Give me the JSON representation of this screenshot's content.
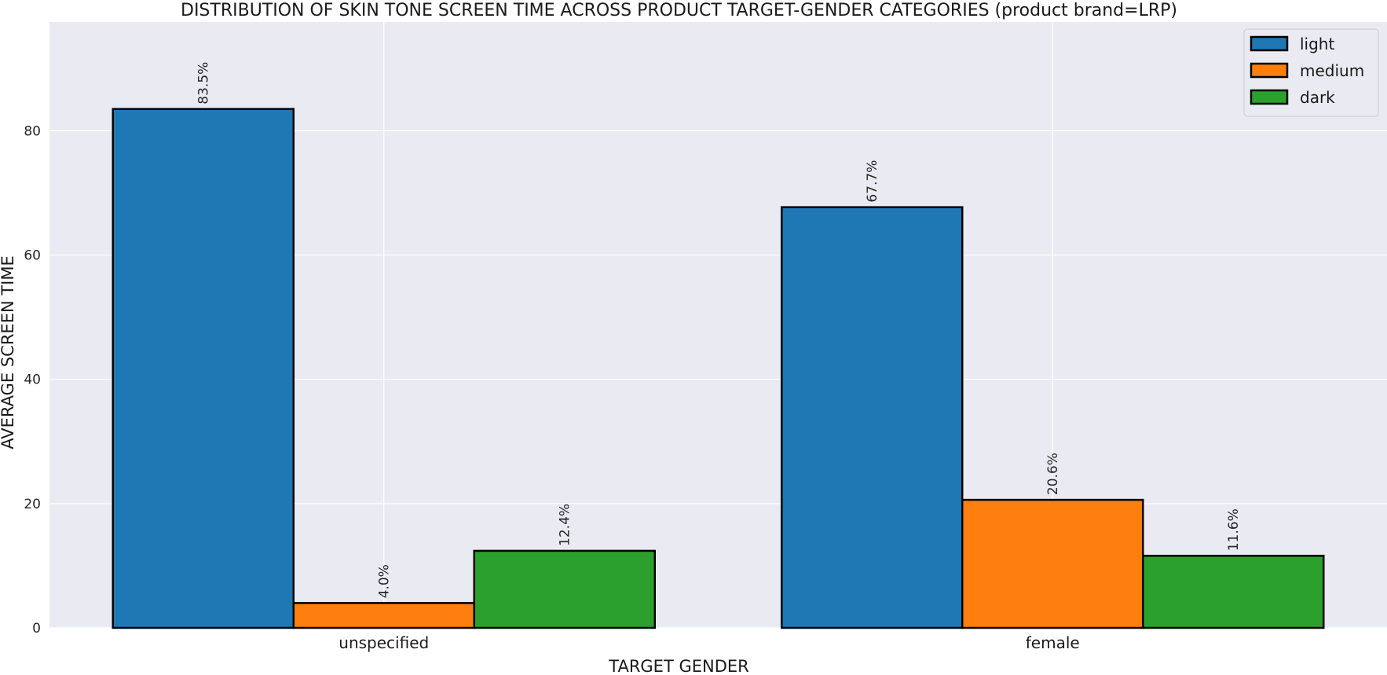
{
  "chart_data": {
    "type": "bar",
    "title": "DISTRIBUTION OF SKIN TONE SCREEN TIME ACROSS PRODUCT TARGET-GENDER CATEGORIES (product brand=LRP)",
    "xlabel": "TARGET GENDER",
    "ylabel": "AVERAGE SCREEN TIME",
    "categories": [
      "unspecified",
      "female"
    ],
    "series": [
      {
        "name": "light",
        "values": [
          83.5,
          67.7
        ],
        "labels": [
          "83.5%",
          "67.7%"
        ],
        "color": "#1f77b4"
      },
      {
        "name": "medium",
        "values": [
          4.0,
          20.6
        ],
        "labels": [
          "4.0%",
          "20.6%"
        ],
        "color": "#ff7f0e"
      },
      {
        "name": "dark",
        "values": [
          12.4,
          11.6
        ],
        "labels": [
          "12.4%",
          "11.6%"
        ],
        "color": "#2ca02c"
      }
    ],
    "ylim": [
      0,
      97.5
    ],
    "yticks": [
      0,
      20,
      40,
      60,
      80
    ],
    "grid": true,
    "legend": "top-right",
    "background": "#eaeaf2"
  }
}
